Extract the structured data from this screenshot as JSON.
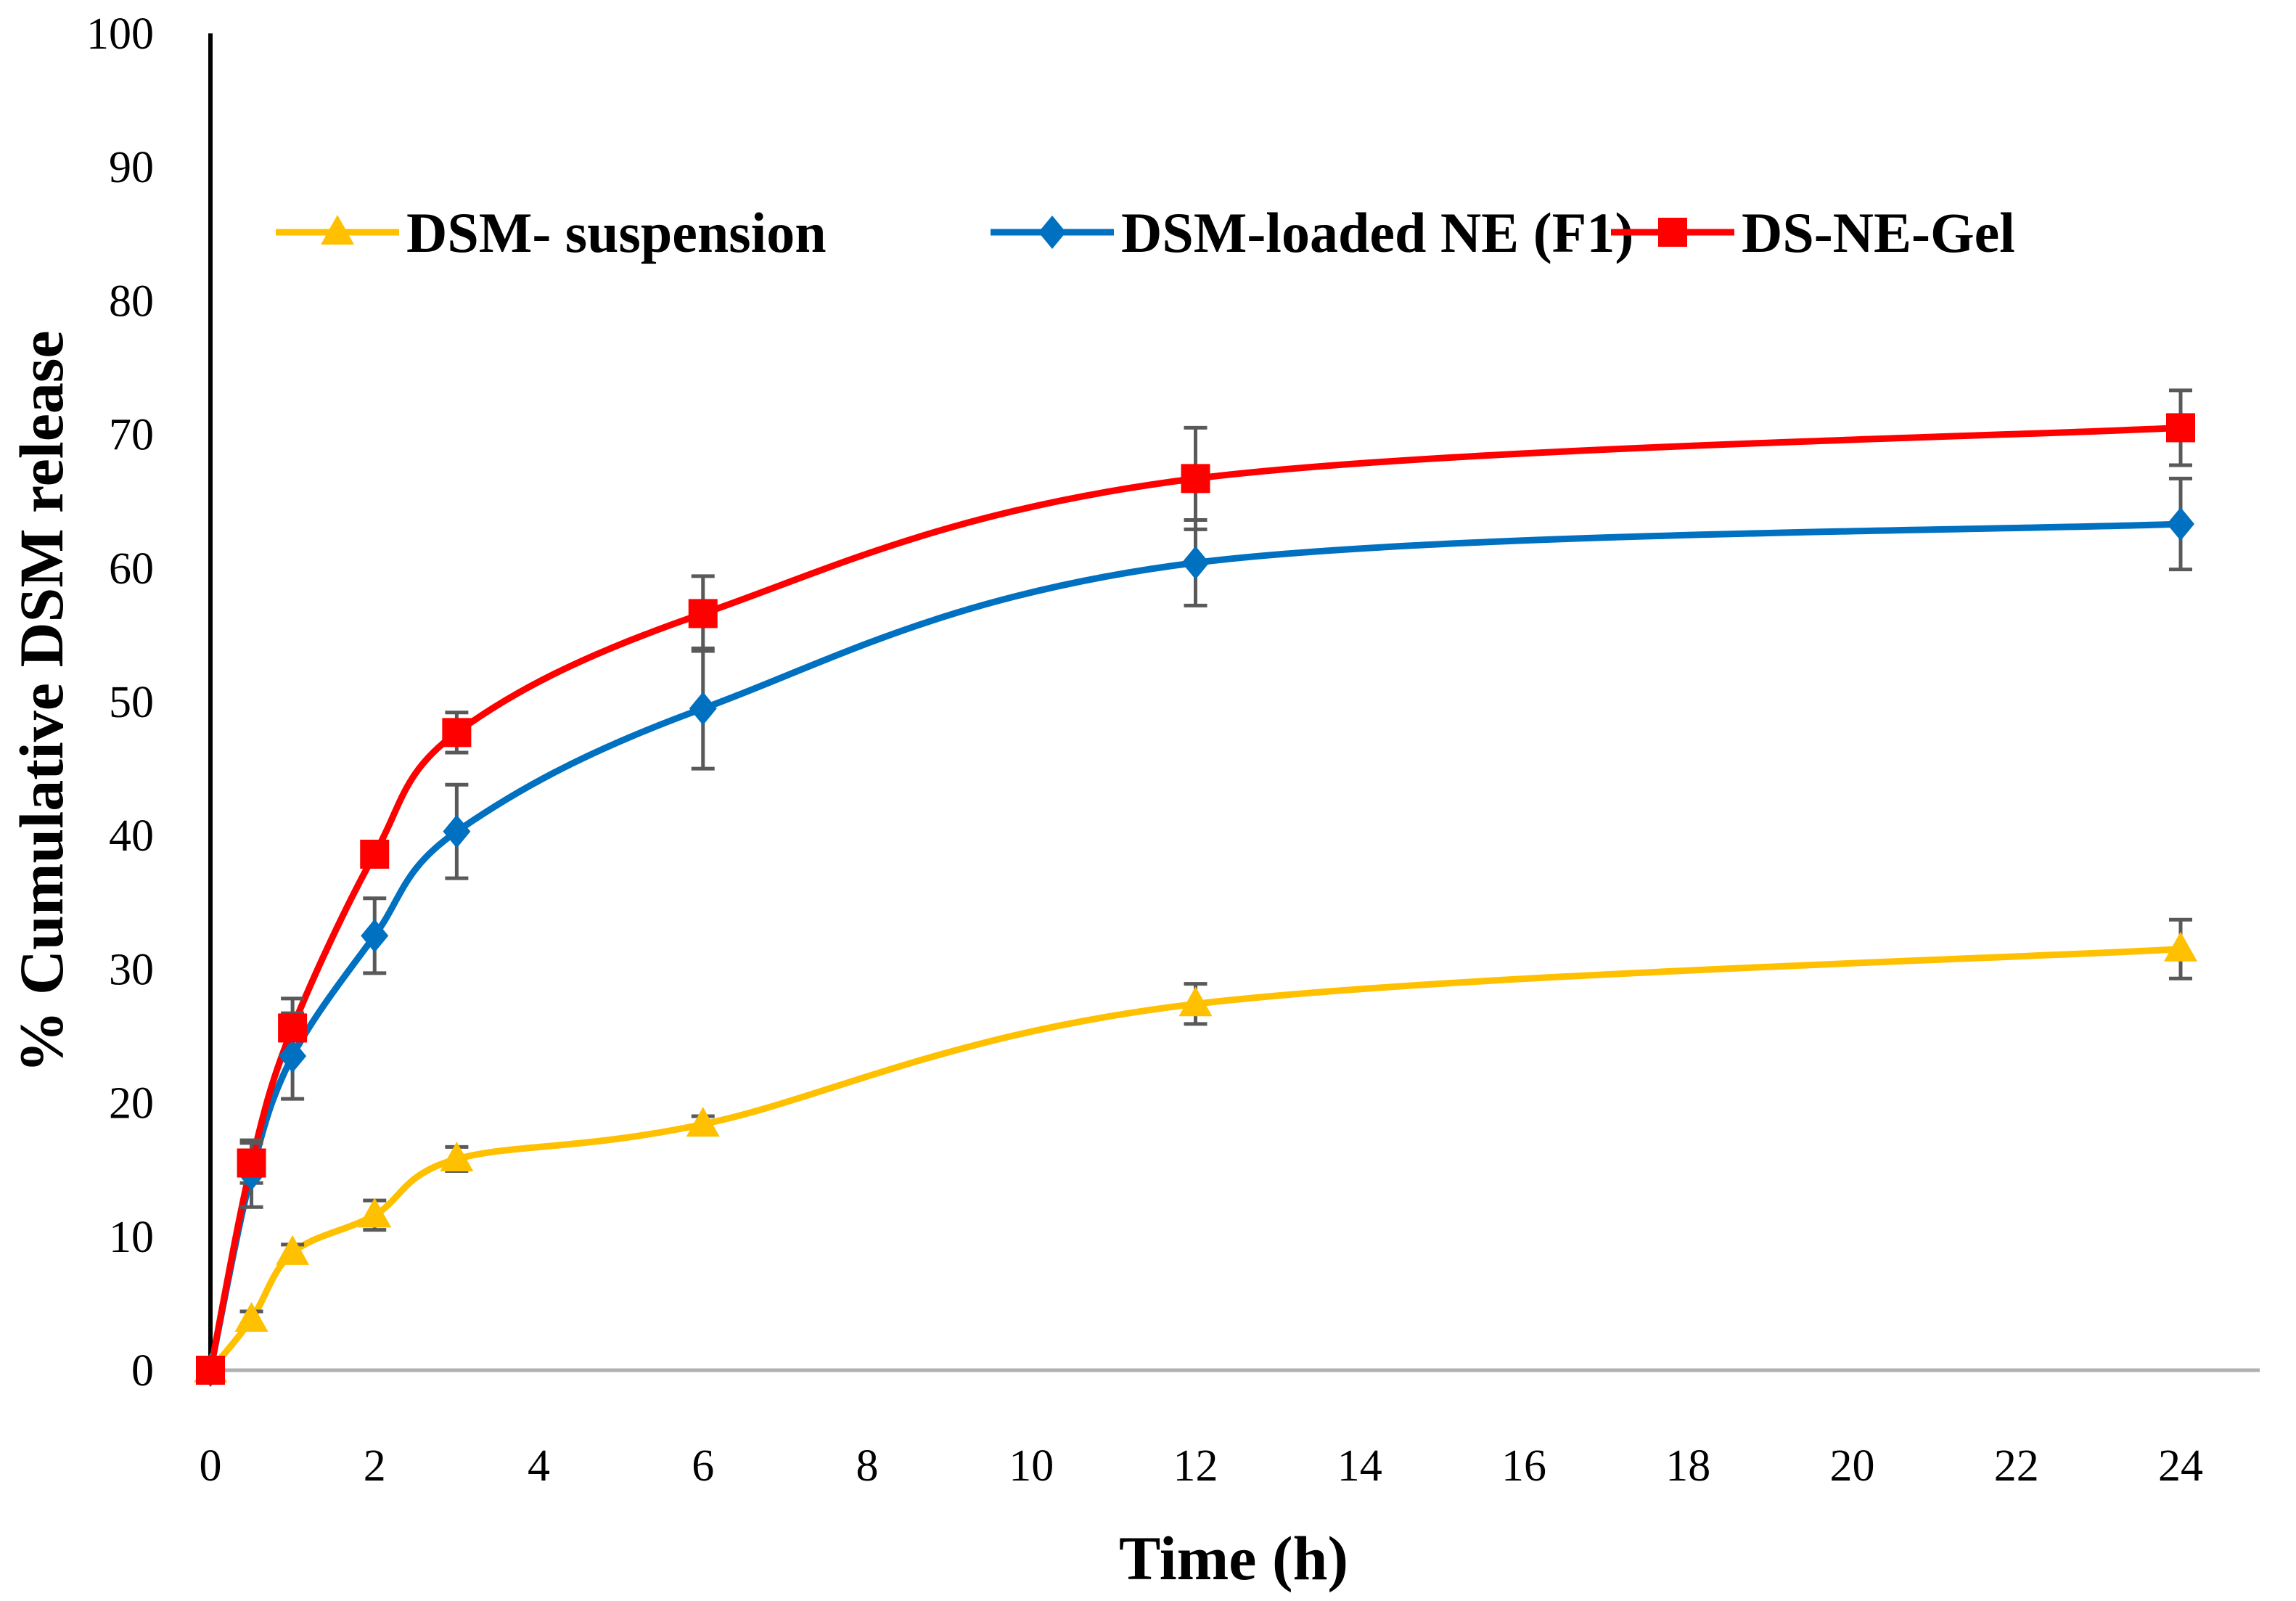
{
  "chart_data": {
    "type": "line",
    "title": "",
    "xlabel": "Time (h)",
    "ylabel": "% Cumulative DSM release",
    "xlim": [
      0,
      24
    ],
    "ylim": [
      0,
      100
    ],
    "x_ticks": [
      0,
      2,
      4,
      6,
      8,
      10,
      12,
      14,
      16,
      18,
      20,
      22,
      24
    ],
    "y_ticks": [
      0,
      10,
      20,
      30,
      40,
      50,
      60,
      70,
      80,
      90,
      100
    ],
    "grid": false,
    "legend_position": "top",
    "x": [
      0,
      0.5,
      1,
      2,
      3,
      6,
      12,
      24
    ],
    "series": [
      {
        "name": "DSM- suspension",
        "color": "#FFC000",
        "marker": "triangle",
        "values": [
          0,
          3.8,
          8.8,
          11.6,
          15.8,
          18.4,
          27.4,
          31.5
        ],
        "errors": [
          0,
          0.6,
          0.6,
          1.1,
          0.9,
          0.6,
          1.5,
          2.2
        ]
      },
      {
        "name": "DSM-loaded NE (F1)",
        "color": "#0070C0",
        "marker": "diamond",
        "values": [
          0,
          14.7,
          23.5,
          32.5,
          40.3,
          49.5,
          60.4,
          63.3
        ],
        "errors": [
          0,
          2.5,
          3.2,
          2.8,
          3.5,
          4.5,
          3.2,
          3.4
        ]
      },
      {
        "name": "DS-NE-Gel",
        "color": "#FF0000",
        "marker": "square",
        "values": [
          0,
          15.5,
          25.6,
          38.6,
          47.7,
          56.6,
          66.7,
          70.5
        ],
        "errors": [
          0,
          1.5,
          2.2,
          0,
          1.5,
          2.8,
          3.8,
          2.8
        ]
      }
    ]
  }
}
